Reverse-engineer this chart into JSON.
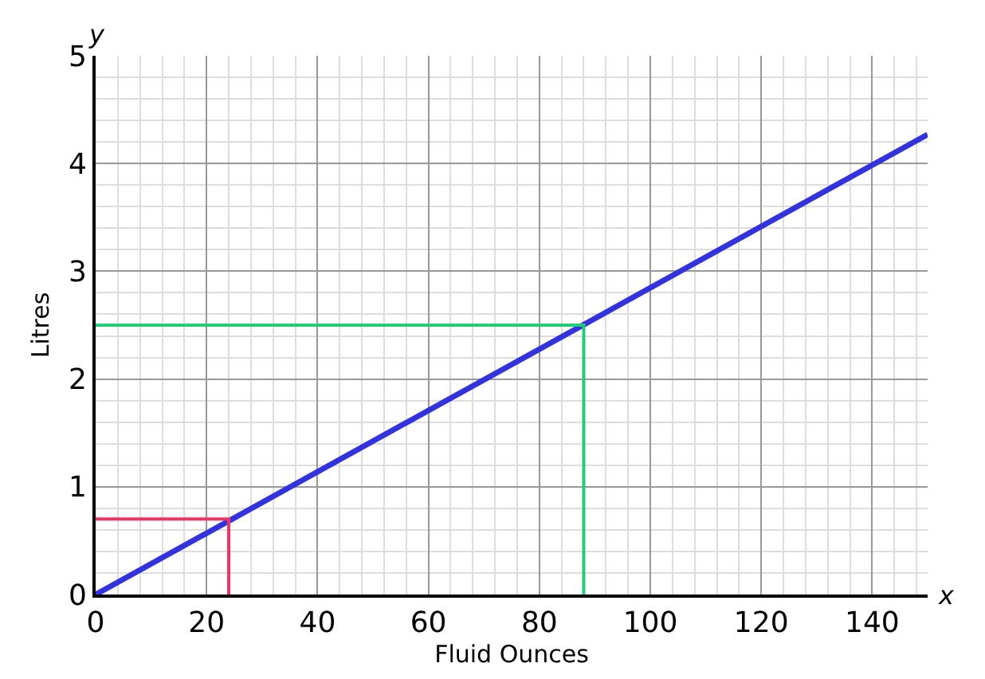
{
  "chart_data": {
    "type": "line",
    "xlabel": "Fluid Ounces",
    "ylabel": "Litres",
    "annotations": [
      "x",
      "y"
    ],
    "series": [
      {
        "color": "#3333dd",
        "x": [
          0,
          150
        ],
        "values": [
          0,
          4.27
        ]
      },
      {
        "color": "#ee3366",
        "x": [
          0,
          24,
          24
        ],
        "values": [
          0.7,
          0.7,
          0
        ]
      },
      {
        "color": "#22cc77",
        "x": [
          0,
          88,
          88
        ],
        "values": [
          2.5,
          2.5,
          0
        ]
      }
    ],
    "xlim": [
      0,
      150
    ],
    "ylim": [
      0,
      5
    ],
    "xticks": [
      0,
      20,
      40,
      60,
      80,
      100,
      120,
      140
    ],
    "yticks": [
      0,
      1,
      2,
      3,
      4,
      5
    ],
    "grid": true,
    "marker": "none",
    "line_style": "solid"
  }
}
